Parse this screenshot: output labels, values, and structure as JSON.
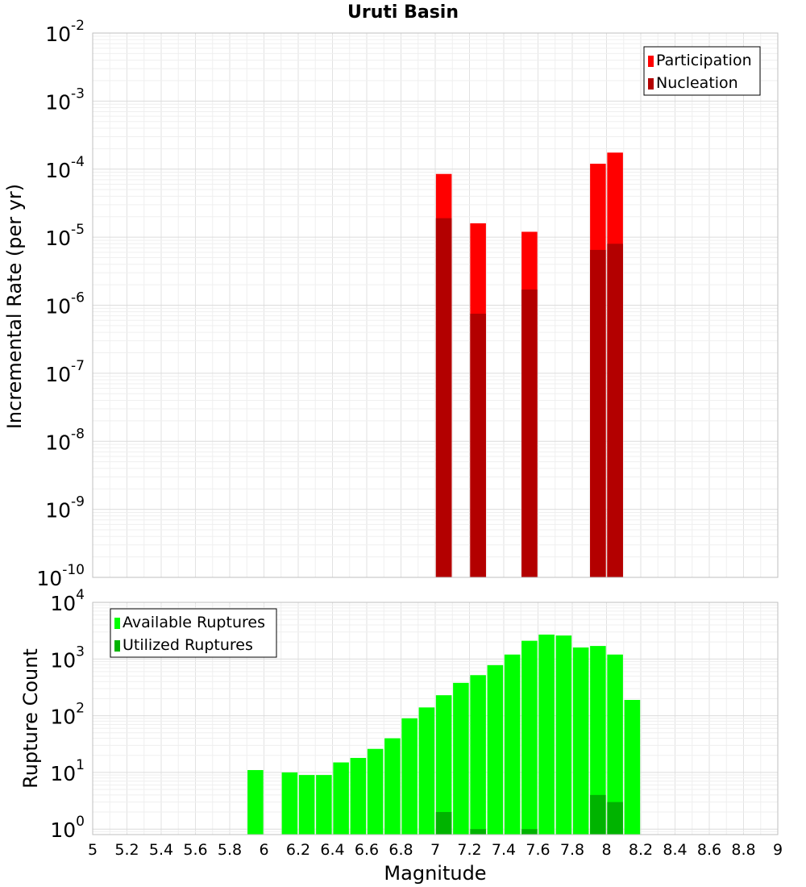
{
  "chart_data": [
    {
      "type": "bar",
      "title": "Uruti Basin",
      "xlabel": "",
      "ylabel": "Incremental Rate (per yr)",
      "yscale": "log",
      "ylim": [
        1e-10,
        0.01
      ],
      "xlim": [
        5,
        9
      ],
      "ytick_exponents": [
        -10,
        -9,
        -8,
        -7,
        -6,
        -5,
        -4,
        -3,
        -2
      ],
      "grid": true,
      "legend_position": "top-right",
      "x": [
        7.05,
        7.25,
        7.55,
        7.95,
        8.05
      ],
      "series": [
        {
          "name": "Participation",
          "color": "#ff0000",
          "values": [
            8.5e-05,
            1.6e-05,
            1.2e-05,
            0.00012,
            0.000175
          ]
        },
        {
          "name": "Nucleation",
          "color": "#b30000",
          "values": [
            1.9e-05,
            7.5e-07,
            1.7e-06,
            6.5e-06,
            8e-06
          ]
        }
      ]
    },
    {
      "type": "bar",
      "title": "",
      "xlabel": "Magnitude",
      "ylabel": "Rupture Count",
      "yscale": "log",
      "ylim": [
        0.8,
        10000
      ],
      "xlim": [
        5,
        9
      ],
      "ytick_exponents": [
        0,
        1,
        2,
        3,
        4
      ],
      "xticks": [
        "5",
        "5.2",
        "5.4",
        "5.6",
        "5.8",
        "6",
        "6.2",
        "6.4",
        "6.6",
        "6.8",
        "7",
        "7.2",
        "7.4",
        "7.6",
        "7.8",
        "8",
        "8.2",
        "8.4",
        "8.6",
        "8.8",
        "9"
      ],
      "grid": true,
      "legend_position": "top-left",
      "x": [
        5.95,
        6.15,
        6.25,
        6.35,
        6.45,
        6.55,
        6.65,
        6.75,
        6.85,
        6.95,
        7.05,
        7.15,
        7.25,
        7.35,
        7.45,
        7.55,
        7.65,
        7.75,
        7.85,
        7.95,
        8.05,
        8.15
      ],
      "series": [
        {
          "name": "Available Ruptures",
          "color": "#00ff00",
          "values": [
            11,
            10,
            9,
            9,
            15,
            18,
            26,
            40,
            90,
            140,
            230,
            380,
            520,
            780,
            1200,
            2100,
            2700,
            2600,
            1600,
            1700,
            1200,
            190
          ]
        },
        {
          "name": "Utilized Ruptures",
          "color": "#00b300",
          "values": [
            0,
            0,
            0,
            0,
            0,
            0,
            0,
            0,
            0,
            0,
            2,
            0,
            1,
            0,
            0,
            1,
            0,
            0,
            0,
            4,
            3,
            0
          ]
        }
      ]
    }
  ]
}
